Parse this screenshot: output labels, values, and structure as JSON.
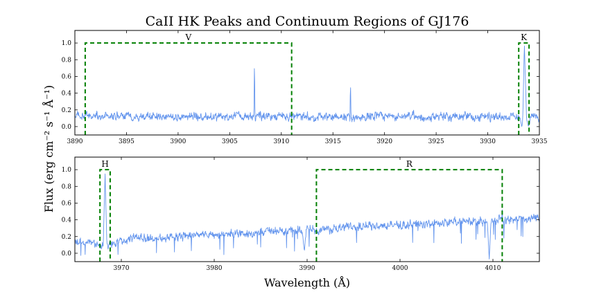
{
  "title": "CaII HK Peaks and Continuum Regions of GJ176",
  "xlabel": "Wavelength (Å)",
  "ylabel": "Flux (erg cm⁻² s⁻¹ Å⁻¹)",
  "colors": {
    "spectrum": "#6495ED",
    "region": "#007F00"
  },
  "chart_data": [
    {
      "type": "line",
      "series": [
        {
          "color": "#6495ED"
        }
      ],
      "xlim": [
        3890,
        3935
      ],
      "ylim": [
        -0.1,
        1.15
      ],
      "xticks": [
        3890,
        3895,
        3900,
        3905,
        3910,
        3915,
        3920,
        3925,
        3930,
        3935
      ],
      "yticks": [
        0.0,
        0.2,
        0.4,
        0.6,
        0.8,
        1.0
      ],
      "baseline": 0.12,
      "noise": 0.05,
      "regions": [
        {
          "label": "V",
          "x0": 3891.0,
          "x1": 3911.0,
          "top": 1.0
        },
        {
          "label": "K",
          "x0": 3933.0,
          "x1": 3934.0,
          "top": 1.0
        }
      ],
      "features": [
        {
          "x": 3907.4,
          "y": 0.85,
          "kind": "spike"
        },
        {
          "x": 3916.7,
          "y": 0.56,
          "kind": "spike"
        },
        {
          "x": 3933.55,
          "y": 0.98,
          "kind": "emission"
        },
        {
          "x": 3933.3,
          "y": 0.0,
          "kind": "dip"
        },
        {
          "x": 3933.95,
          "y": 0.0,
          "kind": "dip"
        }
      ]
    },
    {
      "type": "line",
      "series": [
        {
          "color": "#6495ED"
        }
      ],
      "xlim": [
        3965,
        4015
      ],
      "ylim": [
        -0.1,
        1.15
      ],
      "xticks": [
        3970,
        3980,
        3990,
        4000,
        4010
      ],
      "yticks": [
        0.0,
        0.2,
        0.4,
        0.6,
        0.8,
        1.0
      ],
      "baseline_start": 0.14,
      "baseline_end": 0.42,
      "noise": 0.05,
      "regions": [
        {
          "label": "H",
          "x0": 3967.7,
          "x1": 3968.8,
          "top": 1.0
        },
        {
          "label": "R",
          "x0": 3991.0,
          "x1": 4011.0,
          "top": 1.0
        }
      ],
      "features": [
        {
          "x": 3968.25,
          "y": 0.95,
          "kind": "emission"
        },
        {
          "x": 3989.7,
          "y": 0.02,
          "kind": "dip"
        },
        {
          "x": 4009.6,
          "y": -0.08,
          "kind": "dip"
        },
        {
          "x": 4011.0,
          "y": 0.52,
          "kind": "spike"
        }
      ]
    }
  ]
}
